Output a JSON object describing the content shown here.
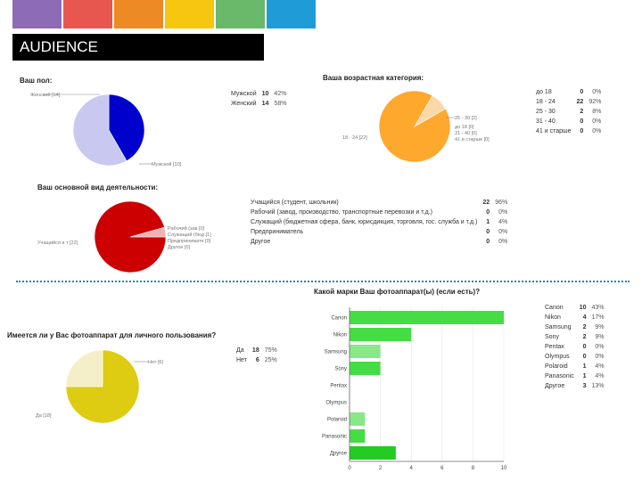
{
  "colors": {
    "strips": [
      "#8e6bb5",
      "#e8574f",
      "#ee8a24",
      "#f6c611",
      "#6ab86a",
      "#1f9bd7"
    ],
    "banner_bg": "#000000",
    "divider": "#2a7fc0"
  },
  "banner": {
    "title": "AUDIENCE"
  },
  "chart_data": [
    {
      "type": "pie",
      "title": "Ваш пол:",
      "labels": [
        "Мужской",
        "Женский"
      ],
      "values": [
        10,
        14
      ],
      "percents": [
        "42%",
        "58%"
      ],
      "slice_labels": [
        "Мужской [10]",
        "Женский [14]"
      ],
      "colors": [
        "#0000cc",
        "#c8c8f0"
      ]
    },
    {
      "type": "pie",
      "title": "Ваша возрастная категория:",
      "labels": [
        "до 18",
        "18 - 24",
        "25 - 30",
        "31 - 40",
        "41 и старше"
      ],
      "values": [
        0,
        22,
        2,
        0,
        0
      ],
      "percents": [
        "0%",
        "92%",
        "8%",
        "0%",
        "0%"
      ],
      "slice_labels": [
        "25 - 30 [2]",
        "до 18 [0]",
        "31 - 40 [0]",
        "41 и старше [0]",
        "18 - 24 [22]"
      ],
      "colors": [
        "#f9e0c0",
        "#ffa82e",
        "#fbd8a8",
        "#f6e6d0",
        "#efe8e0"
      ]
    },
    {
      "type": "pie",
      "title": "Ваш основной вид деятельности:",
      "labels": [
        "Учащийся (студент, школьник)",
        "Рабочий (завод, производство, транспортные перевозки и т.д.)",
        "Служащий (бюджетная сфера, банк, юрисдикция, торговля, гос. служба и т.д.)",
        "Предприниматель",
        "Другое"
      ],
      "values": [
        22,
        0,
        1,
        0,
        0
      ],
      "percents": [
        "96%",
        "0%",
        "4%",
        "0%",
        "0%"
      ],
      "slice_labels": [
        "Учащийся и т [22]",
        "Рабочий (зав [0]",
        "Служащий (бюд [1]",
        "Предпринимате [0]",
        "Другое [0]"
      ],
      "colors": [
        "#cc0000",
        "#e88",
        "#f4b0b0",
        "#f7d0d0",
        "#fae0e0"
      ]
    },
    {
      "type": "pie",
      "title": "Имеется ли у Вас фотоаппарат для личного пользования?",
      "labels": [
        "Да",
        "Нет"
      ],
      "values": [
        18,
        6
      ],
      "percents": [
        "75%",
        "25%"
      ],
      "slice_labels": [
        "Нет [6]",
        "Да [18]"
      ],
      "colors": [
        "#ddcc11",
        "#f4efc8"
      ]
    },
    {
      "type": "bar",
      "orientation": "horizontal",
      "title": "Какой марки Ваш фотоаппарат(ы) (если есть)?",
      "categories": [
        "Canon",
        "Nikon",
        "Samsung",
        "Sony",
        "Pentax",
        "Olympus",
        "Polaroid",
        "Panasonic",
        "Другое"
      ],
      "values": [
        10,
        4,
        2,
        2,
        0,
        0,
        1,
        1,
        3
      ],
      "percents": [
        "43%",
        "17%",
        "9%",
        "9%",
        "0%",
        "0%",
        "4%",
        "4%",
        "13%"
      ],
      "xlim": [
        0,
        10
      ],
      "xticks": [
        "0",
        "2",
        "4",
        "6",
        "8",
        "10"
      ],
      "bar_colors": [
        "#44dd44",
        "#44dd44",
        "#88e888",
        "#44dd44",
        "#44dd44",
        "#44dd44",
        "#88e888",
        "#44dd44",
        "#22cc22"
      ]
    }
  ]
}
